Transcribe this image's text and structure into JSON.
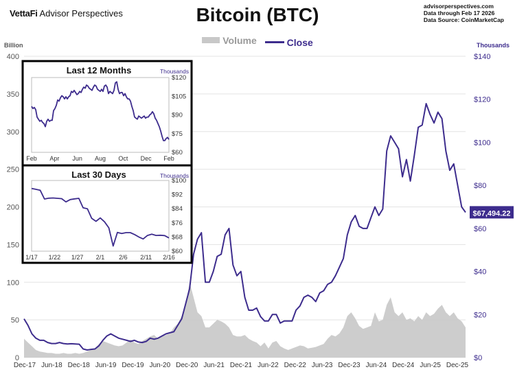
{
  "header": {
    "brand_a": "VettaFi",
    "brand_b": "Advisor Perspectives",
    "title": "Bitcoin (BTC)",
    "source_lines": [
      "advisorperspectives.com",
      "Data through Feb 17 2026",
      "Data Source: CoinMarketCap"
    ]
  },
  "legend": {
    "volume": "Volume",
    "close": "Close"
  },
  "colors": {
    "price": "#3d2c8d",
    "volume": "#c8c8c8",
    "grid": "#e3e3e3",
    "text": "#555555"
  },
  "chart_data": [
    {
      "type": "area",
      "title": "Bitcoin (BTC)",
      "left_axis_label": "Billion",
      "right_axis_label": "Thousands",
      "x_ticks": [
        "Dec-17",
        "Jun-18",
        "Dec-18",
        "Jun-19",
        "Dec-19",
        "Jun-20",
        "Dec-20",
        "Jun-21",
        "Dec-21",
        "Jun-22",
        "Dec-22",
        "Jun-23",
        "Dec-23",
        "Jun-24",
        "Dec-24",
        "Jun-25",
        "Dec-25"
      ],
      "y_left_ticks": [
        0,
        50,
        100,
        150,
        200,
        250,
        300,
        350,
        400
      ],
      "y_left_lim": [
        0,
        400
      ],
      "y_right_ticks": [
        "$0",
        "$20",
        "$40",
        "$60",
        "$80",
        "$100",
        "$120",
        "$140"
      ],
      "y_right_lim": [
        0,
        140
      ],
      "last_value_label": "$67,494.22",
      "series": [
        {
          "name": "Close",
          "unit": "thousands USD",
          "values": [
            18,
            15,
            11,
            9,
            8,
            8,
            7,
            6.5,
            6.5,
            7,
            6.5,
            6.3,
            6.4,
            6.3,
            6.2,
            4,
            3.5,
            3.8,
            4,
            5.5,
            8,
            10,
            11,
            10,
            9,
            8.5,
            8,
            7.5,
            8,
            7.2,
            7,
            7.5,
            9,
            8.5,
            9,
            10,
            11,
            11.5,
            12,
            15,
            18,
            25,
            32,
            48,
            55,
            58,
            35,
            35,
            40,
            47,
            48,
            57,
            60,
            43,
            38,
            40,
            28,
            22,
            22,
            23,
            19,
            17,
            17,
            20,
            20,
            16,
            17,
            17,
            17,
            22,
            24,
            28,
            29,
            28,
            26,
            30,
            31,
            34,
            35,
            38,
            42,
            46,
            57,
            63,
            66,
            61,
            60,
            60,
            65,
            70,
            66,
            69,
            96,
            103,
            100,
            97,
            84,
            92,
            82,
            94,
            107,
            108,
            118,
            113,
            109,
            114,
            111,
            96,
            87,
            90,
            80,
            70,
            67.49
          ]
        },
        {
          "name": "Volume",
          "unit": "billion USD",
          "values": [
            25,
            20,
            15,
            10,
            8,
            7,
            6,
            6,
            5,
            5,
            6,
            5,
            5,
            6,
            5,
            6,
            8,
            10,
            12,
            18,
            22,
            20,
            18,
            16,
            15,
            16,
            20,
            24,
            20,
            18,
            22,
            25,
            28,
            30,
            25,
            28,
            30,
            32,
            40,
            45,
            55,
            70,
            100,
            80,
            60,
            55,
            40,
            40,
            45,
            50,
            48,
            45,
            40,
            30,
            28,
            28,
            30,
            25,
            22,
            20,
            15,
            20,
            12,
            20,
            22,
            15,
            12,
            10,
            12,
            14,
            16,
            15,
            12,
            13,
            14,
            16,
            18,
            25,
            30,
            28,
            32,
            40,
            55,
            60,
            52,
            42,
            38,
            40,
            42,
            60,
            48,
            50,
            70,
            80,
            60,
            55,
            60,
            50,
            52,
            48,
            55,
            50,
            60,
            55,
            58,
            65,
            70,
            60,
            55,
            60,
            52,
            48,
            40
          ]
        }
      ]
    },
    {
      "type": "line",
      "title": "Last 12 Months",
      "right_axis_label": "Thousands",
      "x_ticks": [
        "Feb",
        "Apr",
        "Jun",
        "Aug",
        "Oct",
        "Dec",
        "Feb"
      ],
      "y_ticks": [
        "$120",
        "$105",
        "$90",
        "$75",
        "$60"
      ],
      "y_lim": [
        55,
        125
      ],
      "series": [
        {
          "name": "Close",
          "values": [
            98,
            96,
            97,
            95,
            88,
            86,
            84,
            85,
            83,
            82,
            79,
            84,
            86,
            84,
            85,
            85,
            94,
            96,
            99,
            104,
            103,
            106,
            108,
            107,
            105,
            107,
            105,
            107,
            108,
            112,
            111,
            113,
            111,
            109,
            110,
            112,
            111,
            114,
            116,
            115,
            118,
            117,
            115,
            114,
            113,
            116,
            118,
            117,
            114,
            113,
            112,
            114,
            112,
            117,
            118,
            116,
            110,
            112,
            111,
            110,
            113,
            120,
            121,
            114,
            110,
            111,
            111,
            108,
            110,
            107,
            105,
            105,
            103,
            98,
            94,
            88,
            87,
            86,
            89,
            88,
            87,
            88,
            89,
            87,
            88,
            88,
            90,
            91,
            93,
            91,
            87,
            85,
            82,
            79,
            75,
            70,
            66,
            66,
            68,
            69,
            67
          ]
        }
      ]
    },
    {
      "type": "line",
      "title": "Last 30 Days",
      "right_axis_label": "Thousands",
      "x_ticks": [
        "1/17",
        "1/22",
        "1/27",
        "2/1",
        "2/6",
        "2/11",
        "2/16"
      ],
      "y_ticks": [
        "$100",
        "$92",
        "$84",
        "$76",
        "$68",
        "$60"
      ],
      "y_lim": [
        60,
        100
      ],
      "series": [
        {
          "name": "Close",
          "values": [
            95.5,
            95,
            94.5,
            89.5,
            90,
            90.1,
            89.9,
            89.7,
            87.9,
            89.2,
            89.6,
            89.9,
            84.6,
            84.0,
            78.6,
            76.9,
            78.8,
            76.6,
            73.2,
            62.9,
            70.6,
            70.0,
            70.5,
            70.5,
            69.4,
            68.0,
            66.9,
            68.9,
            69.6,
            68.9,
            69.0,
            68.8,
            67.5
          ]
        }
      ]
    }
  ]
}
